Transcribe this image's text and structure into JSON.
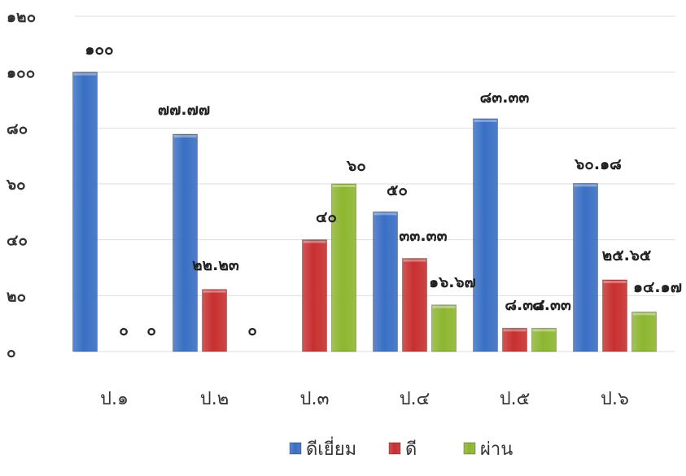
{
  "chart_data": {
    "type": "bar",
    "categories": [
      "ป.๑",
      "ป.๒",
      "ป.๓",
      "ป.๔",
      "ป.๕",
      "ป.๖"
    ],
    "y_ticks": [
      "๐",
      "๒๐",
      "๔๐",
      "๖๐",
      "๘๐",
      "๑๐๐",
      "๑๒๐"
    ],
    "ylim": [
      0,
      120
    ],
    "grid": true,
    "legend_position": "bottom",
    "series": [
      {
        "name": "ดีเยี่ยม",
        "color": "#3a6fc4",
        "values": [
          100,
          77.77,
          0,
          50,
          83.33,
          60.18
        ],
        "labels": [
          "๑๐๐",
          "๗๗.๗๗",
          "",
          "๕๐",
          "๘๓.๓๓",
          "๖๐.๑๘"
        ]
      },
      {
        "name": "ดี",
        "color": "#c83030",
        "values": [
          0,
          22.23,
          40,
          33.33,
          8.34,
          25.65
        ],
        "labels": [
          "๐",
          "๒๒.๒๓",
          "๔๐",
          "๓๓.๓๓",
          "๘.๓๔",
          "๒๕.๖๕"
        ]
      },
      {
        "name": "ผ่าน",
        "color": "#8db630",
        "values": [
          0,
          0,
          60,
          16.67,
          8.33,
          14.17
        ],
        "labels": [
          "๐",
          "๐",
          "๖๐",
          "๑๖.๖๗",
          "๘.๓๓",
          "๑๔.๑๗"
        ]
      }
    ],
    "label_positions": [
      [
        [
          122,
          67
        ],
        [
          152,
          412
        ],
        [
          186,
          412
        ]
      ],
      [
        [
          226,
          141
        ],
        [
          265,
          332
        ],
        [
          310,
          412
        ]
      ],
      [
        [
          0,
          0
        ],
        [
          401,
          273
        ],
        [
          438,
          210
        ]
      ],
      [
        [
          488,
          240
        ],
        [
          520,
          296
        ],
        [
          556,
          353
        ]
      ],
      [
        [
          620,
          126
        ],
        [
          645,
          381
        ],
        [
          678,
          381
        ]
      ],
      [
        [
          735,
          208
        ],
        [
          770,
          320
        ],
        [
          808,
          359
        ]
      ]
    ]
  }
}
